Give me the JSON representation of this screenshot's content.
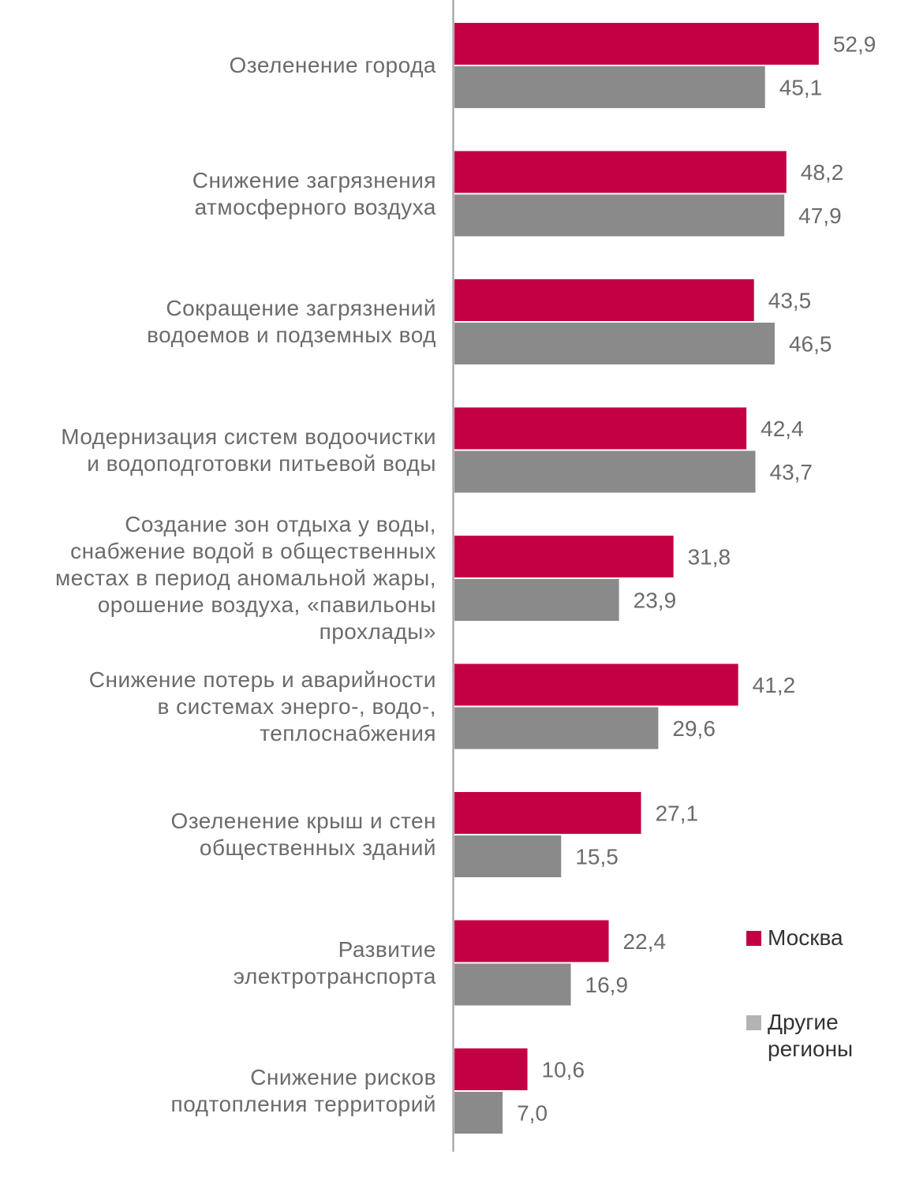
{
  "chart_data": {
    "type": "bar",
    "orientation": "horizontal",
    "categories": [
      "Озеленение города",
      "Снижение загрязнения\nатмосферного воздуха",
      "Сокращение загрязнений\nводоемов и подземных вод",
      "Модернизация систем водоочистки\nи водоподготовки питьевой воды",
      "Создание зон отдыха у воды,\nснабжение водой в общественных\nместах в период аномальной жары,\nорошение воздуха, «павильоны\nпрохлады»",
      "Снижение потерь и аварийности\nв системах энерго-, водо-,\nтеплоснабжения",
      "Озеленение крыш и стен\nобщественных зданий",
      "Развитие\nэлектротранспорта",
      "Снижение рисков\nподтопления территорий"
    ],
    "series": [
      {
        "name": "Москва",
        "color": "#c40045",
        "values": [
          52.9,
          48.2,
          43.5,
          42.4,
          31.8,
          41.2,
          27.1,
          22.4,
          10.6
        ],
        "labels": [
          "52,9",
          "48,2",
          "43,5",
          "42,4",
          "31,8",
          "41,2",
          "27,1",
          "22,4",
          "10,6"
        ]
      },
      {
        "name": "Другие\nрегионы",
        "color": "#8a8a8a",
        "legend_color": "#b3b3b3",
        "values": [
          45.1,
          47.9,
          46.5,
          43.7,
          23.9,
          29.6,
          15.5,
          16.9,
          7.0
        ],
        "labels": [
          "45,1",
          "47,9",
          "46,5",
          "43,7",
          "23,9",
          "29,6",
          "15,5",
          "16,9",
          "7,0"
        ]
      }
    ],
    "xlim": [
      0,
      60
    ],
    "title": "",
    "xlabel": "",
    "ylabel": "",
    "grid": false,
    "legend_position": "bottom-right"
  }
}
